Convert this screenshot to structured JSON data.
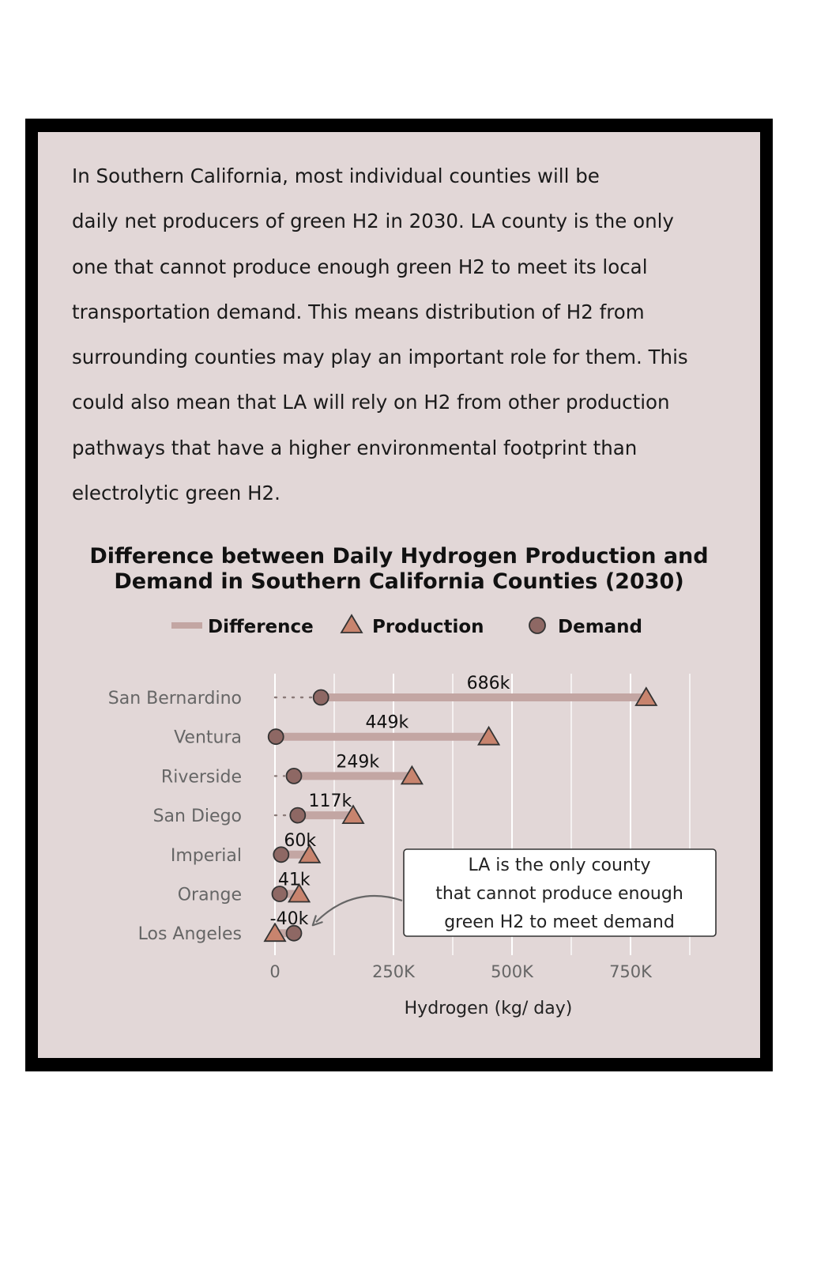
{
  "intro_lines": [
    "In Southern California, most individual counties will be",
    "daily net producers of green H2 in 2030. LA county is the only",
    "one that cannot produce enough green H2 to meet its local",
    "transportation demand. This means distribution of H2 from",
    "surrounding counties may play an important role for them. This",
    "could also mean that LA will rely on H2 from other production",
    "pathways that have a higher environmental footprint than",
    "electrolytic green H2."
  ],
  "colors": {
    "panel_bg": "#e2d7d7",
    "frame": "#000000",
    "difference": "#c3a6a3",
    "production": "#c8846e",
    "demand": "#8e6864",
    "grid": "#ffffff",
    "tick_text": "#666666"
  },
  "icons": {
    "production_marker": "triangle",
    "demand_marker": "circle",
    "arrow": "curved-arrow"
  },
  "chart_data": {
    "type": "dumbbell",
    "title_lines": [
      "Difference between Daily Hydrogen Production and",
      "Demand in Southern California Counties (2030)"
    ],
    "legend": {
      "position": "top",
      "items": [
        {
          "label": "Difference",
          "marker": "line"
        },
        {
          "label": "Production",
          "marker": "triangle"
        },
        {
          "label": "Demand",
          "marker": "circle"
        }
      ]
    },
    "xlabel": "Hydrogen (kg/ day)",
    "xlim": [
      -15000,
      900000
    ],
    "xticks": [
      0,
      250000,
      500000,
      750000
    ],
    "xtick_labels": [
      "0",
      "250K",
      "500K",
      "750K"
    ],
    "grid": true,
    "categories": [
      "San Bernardino",
      "Ventura",
      "Riverside",
      "San Diego",
      "Imperial",
      "Orange",
      "Los Angeles"
    ],
    "production": [
      783000,
      451000,
      289000,
      165000,
      73000,
      51000,
      0
    ],
    "demand": [
      97000,
      2000,
      40000,
      48000,
      13000,
      10000,
      40000
    ],
    "difference_labels": [
      "686k",
      "449k",
      "249k",
      "117k",
      "60k",
      "41k",
      "-40k"
    ],
    "annotation": {
      "lines": [
        "LA is the only county",
        "that cannot produce enough",
        "green H2 to meet demand"
      ],
      "points_to": "Los Angeles"
    }
  }
}
